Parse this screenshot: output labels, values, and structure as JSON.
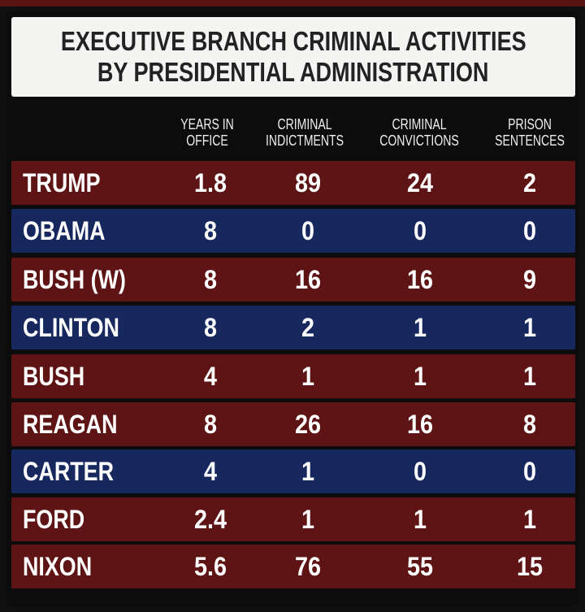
{
  "title": {
    "line1": "EXECUTIVE BRANCH CRIMINAL ACTIVITIES",
    "line2": "BY PRESIDENTIAL ADMINISTRATION"
  },
  "colors": {
    "red_row": "#5e1414",
    "blue_row": "#16285e",
    "background": "#0c0c0c",
    "title_bg": "#f4f4f2"
  },
  "chart_data": {
    "type": "table",
    "title": "EXECUTIVE BRANCH CRIMINAL ACTIVITIES BY PRESIDENTIAL ADMINISTRATION",
    "columns": [
      {
        "line1": "YEARS IN",
        "line2": "OFFICE"
      },
      {
        "line1": "CRIMINAL",
        "line2": "INDICTMENTS"
      },
      {
        "line1": "CRIMINAL",
        "line2": "CONVICTIONS"
      },
      {
        "line1": "PRISON",
        "line2": "SENTENCES"
      }
    ],
    "rows": [
      {
        "name": "TRUMP",
        "color": "red",
        "values": [
          "1.8",
          "89",
          "24",
          "2"
        ]
      },
      {
        "name": "OBAMA",
        "color": "blue",
        "values": [
          "8",
          "0",
          "0",
          "0"
        ]
      },
      {
        "name": "BUSH (W)",
        "color": "red",
        "values": [
          "8",
          "16",
          "16",
          "9"
        ]
      },
      {
        "name": "CLINTON",
        "color": "blue",
        "values": [
          "8",
          "2",
          "1",
          "1"
        ]
      },
      {
        "name": "BUSH",
        "color": "red",
        "values": [
          "4",
          "1",
          "1",
          "1"
        ]
      },
      {
        "name": "REAGAN",
        "color": "red",
        "values": [
          "8",
          "26",
          "16",
          "8"
        ]
      },
      {
        "name": "CARTER",
        "color": "blue",
        "values": [
          "4",
          "1",
          "0",
          "0"
        ]
      },
      {
        "name": "FORD",
        "color": "red",
        "values": [
          "2.4",
          "1",
          "1",
          "1"
        ]
      },
      {
        "name": "NIXON",
        "color": "red",
        "values": [
          "5.6",
          "76",
          "55",
          "15"
        ]
      }
    ]
  }
}
